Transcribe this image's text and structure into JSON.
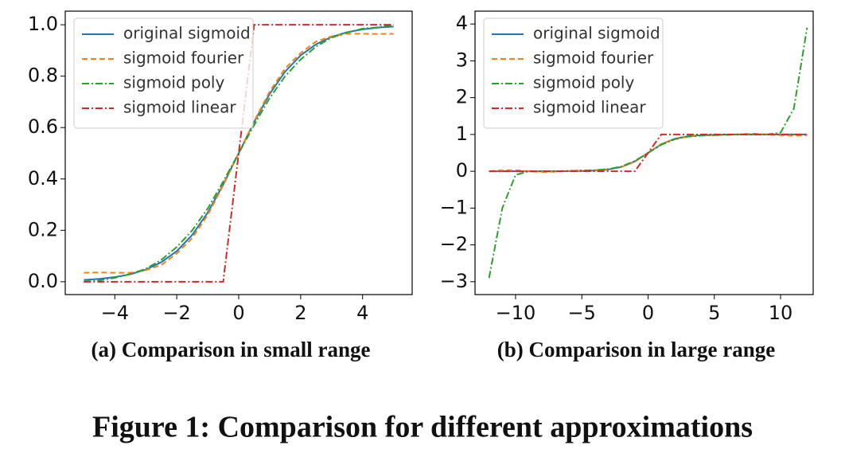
{
  "chart_data": [
    {
      "type": "line",
      "caption": "(a) Comparison in small range",
      "x": [
        -5,
        -4.5,
        -4,
        -3.5,
        -3,
        -2.5,
        -2,
        -1.5,
        -1,
        -0.5,
        0,
        0.5,
        1,
        1.5,
        2,
        2.5,
        3,
        3.5,
        4,
        4.5,
        5
      ],
      "series": [
        {
          "name": "original sigmoid",
          "color": "#1f77b4",
          "style": "solid",
          "values": [
            0.007,
            0.011,
            0.018,
            0.029,
            0.047,
            0.076,
            0.119,
            0.182,
            0.269,
            0.378,
            0.5,
            0.622,
            0.731,
            0.818,
            0.881,
            0.924,
            0.953,
            0.971,
            0.982,
            0.989,
            0.993
          ]
        },
        {
          "name": "sigmoid fourier",
          "color": "#ff7f0e",
          "style": "dashed",
          "values": [
            0.035,
            0.036,
            0.035,
            0.035,
            0.045,
            0.065,
            0.11,
            0.17,
            0.26,
            0.375,
            0.5,
            0.625,
            0.74,
            0.83,
            0.89,
            0.935,
            0.955,
            0.965,
            0.965,
            0.964,
            0.965
          ]
        },
        {
          "name": "sigmoid poly",
          "color": "#2ca02c",
          "style": "dashdot",
          "values": [
            0.0,
            0.005,
            0.015,
            0.03,
            0.05,
            0.085,
            0.135,
            0.2,
            0.285,
            0.39,
            0.5,
            0.61,
            0.715,
            0.8,
            0.865,
            0.915,
            0.95,
            0.97,
            0.985,
            0.99,
            1.0
          ]
        },
        {
          "name": "sigmoid linear",
          "color": "#d62728",
          "style": "dashdot",
          "values": [
            0,
            0,
            0,
            0,
            0,
            0,
            0,
            0,
            0,
            0,
            0.5,
            1,
            1,
            1,
            1,
            1,
            1,
            1,
            1,
            1,
            1
          ]
        }
      ],
      "xlim": [
        -5.6,
        5.6
      ],
      "ylim": [
        -0.05,
        1.053
      ],
      "xticks": [
        {
          "value": -4,
          "label": "−4"
        },
        {
          "value": -2,
          "label": "−2"
        },
        0,
        2,
        4
      ],
      "yticks": [
        {
          "value": 0,
          "label": "0.0"
        },
        0.2,
        0.4,
        0.6,
        0.8,
        {
          "value": 1,
          "label": "1.0"
        }
      ],
      "legend": "upper left",
      "grid": false
    },
    {
      "type": "line",
      "caption": "(b) Comparison in large range",
      "x": [
        -12,
        -11,
        -10,
        -9,
        -8,
        -7,
        -6,
        -5,
        -4,
        -3,
        -2,
        -1,
        0,
        1,
        2,
        3,
        4,
        5,
        6,
        7,
        8,
        9,
        10,
        11,
        12
      ],
      "series": [
        {
          "name": "original sigmoid",
          "color": "#1f77b4",
          "style": "solid",
          "values": [
            0,
            0,
            0,
            0,
            0,
            0,
            0.002,
            0.007,
            0.018,
            0.047,
            0.119,
            0.269,
            0.5,
            0.731,
            0.881,
            0.953,
            0.982,
            0.993,
            0.998,
            0.999,
            1,
            1,
            1,
            1,
            1
          ]
        },
        {
          "name": "sigmoid fourier",
          "color": "#ff7f0e",
          "style": "dashed",
          "values": [
            0.0,
            0.03,
            0.03,
            0.0,
            -0.02,
            -0.01,
            0.01,
            0.02,
            0.03,
            0.06,
            0.12,
            0.26,
            0.5,
            0.74,
            0.88,
            0.94,
            0.97,
            0.98,
            0.99,
            1.01,
            1.02,
            1.0,
            0.98,
            0.97,
            0.98
          ]
        },
        {
          "name": "sigmoid poly",
          "color": "#2ca02c",
          "style": "dashdot",
          "values": [
            -2.9,
            -1.0,
            -0.1,
            0.0,
            0.0,
            0.0,
            0.01,
            0.02,
            0.03,
            0.06,
            0.13,
            0.28,
            0.5,
            0.72,
            0.87,
            0.94,
            0.97,
            0.98,
            0.99,
            1.0,
            1.0,
            1.0,
            1.05,
            1.7,
            3.9
          ]
        },
        {
          "name": "sigmoid linear",
          "color": "#d62728",
          "style": "dashdot",
          "values": [
            0,
            0,
            0,
            0,
            0,
            0,
            0,
            0,
            0,
            0,
            0,
            0,
            0.5,
            1,
            1,
            1,
            1,
            1,
            1,
            1,
            1,
            1,
            1,
            1,
            1
          ]
        }
      ],
      "xlim": [
        -13.06,
        12.46
      ],
      "ylim": [
        -3.35,
        4.35
      ],
      "xticks": [
        {
          "value": -10,
          "label": "−10"
        },
        {
          "value": -5,
          "label": "−5"
        },
        0,
        5,
        10
      ],
      "yticks": [
        {
          "value": -3,
          "label": "−3"
        },
        {
          "value": -2,
          "label": "−2"
        },
        {
          "value": -1,
          "label": "−1"
        },
        0,
        1,
        2,
        3,
        4
      ],
      "legend": "upper left",
      "grid": false
    }
  ],
  "figure_caption": "Figure 1: Comparison for different approximations"
}
